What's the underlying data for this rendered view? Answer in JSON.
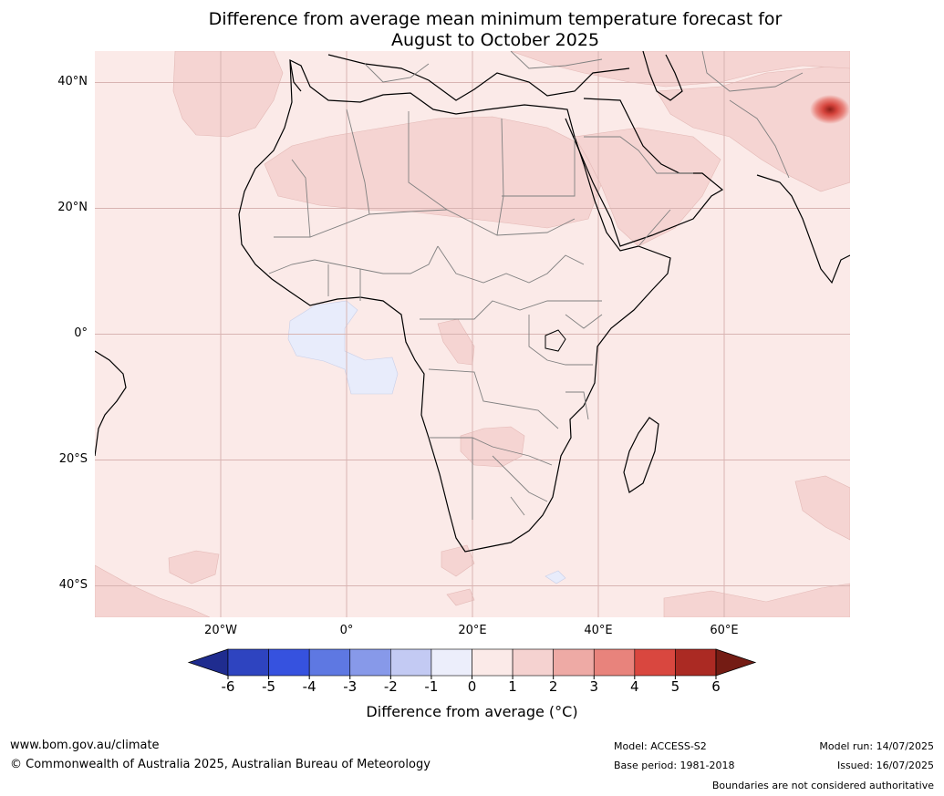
{
  "title": {
    "line1": "Difference from average mean minimum temperature forecast for",
    "line2": "August to October 2025"
  },
  "map": {
    "lat_labels": [
      "40°N",
      "20°N",
      "0°",
      "20°S",
      "40°S"
    ],
    "lon_labels": [
      "20°W",
      "0°",
      "20°E",
      "40°E",
      "60°E"
    ],
    "lat_values": [
      40,
      20,
      0,
      -20,
      -40
    ],
    "lon_values": [
      -20,
      0,
      20,
      40,
      60
    ],
    "extent": {
      "lon_min": -40,
      "lon_max": 80,
      "lat_min": -45,
      "lat_max": 45
    },
    "ocean_color": "#fbeae8",
    "land_anomaly_colors": {
      "zero_to_one": "#fbeae8",
      "one_to_two": "#f5d4d2",
      "minus_one_to_zero": "#e8ecfb",
      "hotspot": "#d6453d"
    }
  },
  "colorbar": {
    "ticks": [
      "-6",
      "-5",
      "-4",
      "-3",
      "-2",
      "-1",
      "0",
      "1",
      "2",
      "3",
      "4",
      "5",
      "6"
    ],
    "colors": [
      "#1f2c8f",
      "#2e44c0",
      "#3652df",
      "#5e78e2",
      "#8799e9",
      "#c3caf3",
      "#eceefb",
      "#fbeae8",
      "#f5d2d0",
      "#eeaaa5",
      "#e8837c",
      "#d9473f",
      "#ab2a23",
      "#741c14"
    ],
    "label": "Difference from average (°C)"
  },
  "footer": {
    "website": "www.bom.gov.au/climate",
    "copyright": "© Commonwealth of Australia 2025, Australian Bureau of Meteorology",
    "model": "Model: ACCESS-S2",
    "base_period": "Base period: 1981-2018",
    "model_run": "Model run: 14/07/2025",
    "issued": "Issued: 16/07/2025",
    "disclaimer": "Boundaries are not considered authoritative"
  }
}
